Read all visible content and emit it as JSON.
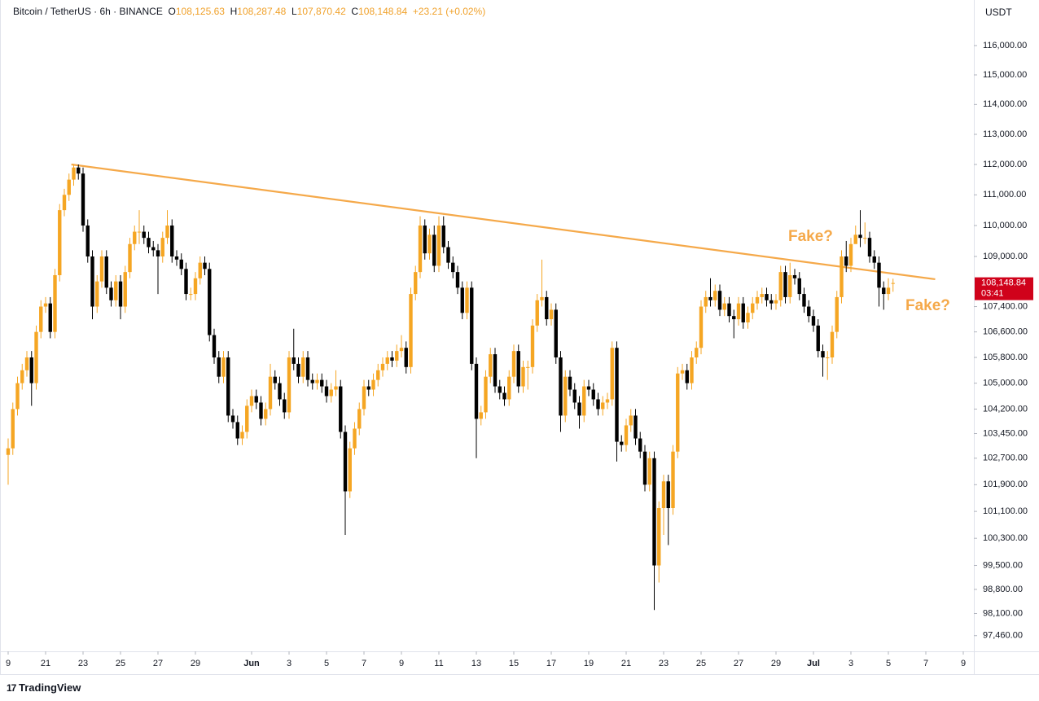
{
  "header": {
    "symbol": "Bitcoin / TetherUS · 6h · BINANCE",
    "open_label": "O",
    "open": "108,125.63",
    "high_label": "H",
    "high": "108,287.48",
    "low_label": "L",
    "low": "107,870.42",
    "close_label": "C",
    "close": "108,148.84",
    "change": "+23.21 (+0.02%)",
    "currency": "USDT"
  },
  "brand": "TradingView",
  "chart_data": {
    "type": "candlestick",
    "log_scale": true,
    "up_color": "#f5a623",
    "down_color": "#000000",
    "ylim": [
      97010,
      117570
    ],
    "yticks": [
      {
        "value": 116000,
        "label": "116,000.00"
      },
      {
        "value": 115000,
        "label": "115,000.00"
      },
      {
        "value": 114000,
        "label": "114,000.00"
      },
      {
        "value": 113000,
        "label": "113,000.00"
      },
      {
        "value": 112000,
        "label": "112,000.00"
      },
      {
        "value": 111000,
        "label": "111,000.00"
      },
      {
        "value": 110000,
        "label": "110,000.00"
      },
      {
        "value": 109000,
        "label": "109,000.00"
      },
      {
        "value": 107400,
        "label": "107,400.00"
      },
      {
        "value": 106600,
        "label": "106,600.00"
      },
      {
        "value": 105800,
        "label": "105,800.00"
      },
      {
        "value": 105000,
        "label": "105,000.00"
      },
      {
        "value": 104200,
        "label": "104,200.00"
      },
      {
        "value": 103450,
        "label": "103,450.00"
      },
      {
        "value": 102700,
        "label": "102,700.00"
      },
      {
        "value": 101900,
        "label": "101,900.00"
      },
      {
        "value": 101100,
        "label": "101,100.00"
      },
      {
        "value": 100300,
        "label": "100,300.00"
      },
      {
        "value": 99500,
        "label": "99,500.00"
      },
      {
        "value": 98800,
        "label": "98,800.00"
      },
      {
        "value": 98100,
        "label": "98,100.00"
      },
      {
        "value": 97460,
        "label": "97,460.00"
      }
    ],
    "categories": [
      "9",
      null,
      null,
      null,
      null,
      null,
      null,
      null,
      "21",
      null,
      null,
      null,
      null,
      null,
      null,
      null,
      "23",
      null,
      null,
      null,
      null,
      null,
      null,
      null,
      "25",
      null,
      null,
      null,
      null,
      null,
      null,
      null,
      "27",
      null,
      null,
      null,
      null,
      null,
      null,
      null,
      "29",
      null,
      null,
      null,
      null,
      null,
      null,
      null,
      null,
      null,
      null,
      null,
      "Jun",
      null,
      null,
      null,
      null,
      null,
      null,
      null,
      "3",
      null,
      null,
      null,
      null,
      null,
      null,
      null,
      "5",
      null,
      null,
      null,
      null,
      null,
      null,
      null,
      "7",
      null,
      null,
      null,
      null,
      null,
      null,
      null,
      "9",
      null,
      null,
      null,
      null,
      null,
      null,
      null,
      "11",
      null,
      null,
      null,
      null,
      null,
      null,
      null,
      "13",
      null,
      null,
      null,
      null,
      null,
      null,
      null,
      "15",
      null,
      null,
      null,
      null,
      null,
      null,
      null,
      "17",
      null,
      null,
      null,
      null,
      null,
      null,
      null,
      "19",
      null,
      null,
      null,
      null,
      null,
      null,
      null,
      "21",
      null,
      null,
      null,
      null,
      null,
      null,
      null,
      "23",
      null,
      null,
      null,
      null,
      null,
      null,
      null,
      "25",
      null,
      null,
      null,
      null,
      null,
      null,
      null,
      "27",
      null,
      null,
      null,
      null,
      null,
      null,
      null,
      "29",
      null,
      null,
      null,
      null,
      null,
      null,
      null,
      "Jul",
      null,
      null,
      null,
      null,
      null,
      null,
      null,
      "3",
      null,
      null,
      null,
      null,
      null,
      null,
      null,
      "5",
      null,
      null,
      null,
      null,
      null,
      null,
      null,
      "7",
      null,
      null,
      null,
      null,
      null,
      null,
      null,
      "9"
    ],
    "open": [
      102800,
      103000,
      104200,
      105000,
      105400,
      105800,
      105000,
      106600,
      107400,
      107500,
      106600,
      108400,
      110500,
      111000,
      111500,
      111900,
      111700,
      110000,
      109000,
      107400,
      108200,
      109000,
      108000,
      107600,
      108200,
      107400,
      108500,
      109400,
      109800,
      109800,
      109600,
      109300,
      109200,
      109000,
      109600,
      110000,
      109000,
      108900,
      108600,
      107800,
      107800,
      108300,
      108800,
      108600,
      106500,
      105800,
      105200,
      105800,
      104000,
      103800,
      103300,
      103500,
      104300,
      104600,
      104400,
      103900,
      104200,
      105200,
      105000,
      104500,
      104100,
      105800,
      105600,
      105200,
      105800,
      105100,
      105000,
      105100,
      104900,
      104600,
      104800,
      104900,
      103500,
      101700,
      103000,
      103600,
      104200,
      104900,
      104800,
      105100,
      105400,
      105600,
      105800,
      105700,
      106000,
      106100,
      105500,
      107800,
      108500,
      110000,
      109100,
      109700,
      108700,
      110000,
      109300,
      108800,
      108500,
      108000,
      107200,
      108000,
      105600,
      103900,
      104100,
      105200,
      105900,
      104900,
      104700,
      104500,
      105200,
      106000,
      104900,
      105500,
      105500,
      106800,
      107600,
      107700,
      107000,
      107300,
      105800,
      104000,
      105200,
      104800,
      104400,
      104000,
      104900,
      104800,
      104500,
      104200,
      104400,
      104500,
      106100,
      103200,
      103100,
      103700,
      104000,
      103300,
      102900,
      101900,
      102700,
      99500,
      101200,
      102000,
      101200,
      102900,
      105300,
      105400,
      105000,
      105800,
      106100,
      107400,
      107700,
      107600,
      107900,
      107300,
      107500,
      107100,
      107000,
      107500,
      106900,
      107200,
      107500,
      107700,
      107800,
      107600,
      107500,
      107600,
      108500,
      107700,
      108400,
      108300,
      107800,
      107400,
      107100,
      106800,
      106000,
      105800,
      105800,
      106600,
      107700,
      109000,
      108700,
      109400,
      109700,
      109600,
      109600,
      109000,
      108800,
      108000,
      107800,
      108125.63,
      null,
      null,
      null,
      null,
      null,
      null,
      null,
      null,
      null,
      null,
      null,
      null,
      null,
      null,
      null
    ],
    "high": [
      103300,
      104400,
      105200,
      105600,
      106000,
      106000,
      106800,
      107600,
      107700,
      107700,
      108600,
      110700,
      111200,
      111700,
      112000,
      112000,
      111900,
      110200,
      109200,
      108400,
      109200,
      109200,
      108200,
      108400,
      108400,
      108700,
      109600,
      110000,
      110500,
      110000,
      109800,
      109500,
      109400,
      109800,
      110500,
      110200,
      109200,
      109100,
      108800,
      108000,
      108500,
      109000,
      109000,
      108800,
      106700,
      106000,
      106000,
      106000,
      104200,
      104000,
      103700,
      104500,
      104800,
      104800,
      104600,
      104400,
      105600,
      105400,
      105200,
      104700,
      106000,
      106700,
      105800,
      106000,
      106000,
      105300,
      105300,
      105300,
      105100,
      105000,
      105400,
      105100,
      103700,
      103200,
      103800,
      104400,
      105100,
      105100,
      105300,
      105600,
      105800,
      106000,
      106000,
      106200,
      106500,
      106300,
      108000,
      108700,
      110300,
      110200,
      109900,
      110000,
      110300,
      110300,
      109500,
      109000,
      108700,
      108200,
      108200,
      108200,
      105800,
      104300,
      105400,
      106100,
      106100,
      105100,
      104900,
      105400,
      106200,
      106200,
      105700,
      105700,
      107000,
      107800,
      108900,
      107900,
      107500,
      107500,
      106000,
      105400,
      105400,
      105000,
      104600,
      105100,
      105100,
      105000,
      104700,
      104600,
      104700,
      106300,
      106300,
      103400,
      103900,
      104200,
      104200,
      103500,
      103100,
      102900,
      102900,
      101400,
      102200,
      102200,
      103100,
      105500,
      105600,
      105600,
      106000,
      106300,
      107600,
      107900,
      108300,
      108100,
      108100,
      107700,
      107700,
      107300,
      107700,
      107700,
      107400,
      107700,
      107900,
      108000,
      108000,
      107800,
      107800,
      108700,
      108700,
      108800,
      108600,
      108500,
      108000,
      107600,
      107300,
      107000,
      106200,
      106000,
      106800,
      107900,
      109200,
      109500,
      109600,
      110000,
      110500,
      110100,
      109800,
      109200,
      109000,
      108200,
      108300,
      108287.48,
      null,
      null,
      null,
      null,
      null,
      null,
      null,
      null,
      null,
      null,
      null,
      null,
      null,
      null,
      null
    ],
    "low": [
      101900,
      102800,
      104000,
      104800,
      105200,
      104300,
      104800,
      106400,
      107200,
      106400,
      106400,
      108200,
      110300,
      110800,
      111300,
      111500,
      109800,
      108800,
      107000,
      107200,
      108000,
      107800,
      107400,
      107400,
      107000,
      107200,
      108300,
      109200,
      109400,
      109400,
      109100,
      109000,
      107800,
      108800,
      109400,
      108800,
      108700,
      108400,
      107600,
      107600,
      107600,
      108100,
      108400,
      106300,
      105600,
      105000,
      105000,
      103800,
      103600,
      103100,
      103100,
      103300,
      104100,
      104200,
      103700,
      103700,
      104000,
      104800,
      104300,
      103900,
      103900,
      105400,
      105000,
      105000,
      104900,
      104800,
      104800,
      104700,
      104400,
      104400,
      104600,
      103300,
      100400,
      101500,
      102800,
      103400,
      104000,
      104600,
      104600,
      104900,
      105200,
      105400,
      105500,
      105500,
      105800,
      105300,
      105300,
      107600,
      108300,
      108900,
      108900,
      108500,
      108500,
      109100,
      108600,
      108300,
      107800,
      107000,
      107000,
      105400,
      102700,
      103700,
      103900,
      105000,
      104700,
      104500,
      104300,
      104300,
      105000,
      104700,
      104700,
      104800,
      105300,
      106600,
      107400,
      106800,
      106800,
      105600,
      103500,
      103800,
      104600,
      104200,
      103600,
      103800,
      104600,
      104300,
      104000,
      104000,
      104200,
      104300,
      102600,
      102900,
      102900,
      103500,
      103100,
      102700,
      101700,
      101700,
      98200,
      99000,
      100400,
      100100,
      101000,
      102700,
      105100,
      104800,
      104800,
      105600,
      105900,
      107200,
      107400,
      107400,
      107100,
      107100,
      106900,
      106400,
      106800,
      106700,
      106700,
      107000,
      107300,
      107500,
      107400,
      107300,
      107300,
      107400,
      107500,
      107500,
      108100,
      107600,
      107200,
      106900,
      106600,
      105800,
      105200,
      105100,
      105600,
      106400,
      107500,
      108500,
      108500,
      109500,
      109300,
      109400,
      108800,
      108600,
      107400,
      107300,
      107600,
      107870.42,
      null,
      null,
      null,
      null,
      null,
      null,
      null,
      null,
      null,
      null,
      null,
      null,
      null,
      null,
      null
    ],
    "close": [
      103000,
      104200,
      105000,
      105400,
      105800,
      105000,
      106600,
      107400,
      107500,
      106600,
      108400,
      110500,
      111000,
      111500,
      111900,
      111700,
      110000,
      109000,
      107400,
      108200,
      109000,
      108000,
      107600,
      108200,
      107400,
      108500,
      109400,
      109800,
      109800,
      109600,
      109300,
      109200,
      109000,
      109600,
      110000,
      109000,
      108900,
      108600,
      107800,
      107800,
      108300,
      108800,
      108600,
      106500,
      105800,
      105200,
      105800,
      104000,
      103800,
      103300,
      103500,
      104300,
      104600,
      104400,
      103900,
      104200,
      105200,
      105000,
      104500,
      104100,
      105800,
      105600,
      105200,
      105800,
      105100,
      105000,
      105100,
      104900,
      104600,
      104800,
      104900,
      103500,
      101700,
      103000,
      103600,
      104200,
      104900,
      104800,
      105100,
      105400,
      105600,
      105800,
      105700,
      106000,
      106100,
      105500,
      107800,
      108500,
      110000,
      109100,
      109700,
      108700,
      110000,
      109300,
      108800,
      108500,
      108000,
      107200,
      108000,
      105600,
      103900,
      104100,
      105200,
      105900,
      104900,
      104700,
      104500,
      105200,
      106000,
      104900,
      105500,
      105500,
      106800,
      107600,
      107700,
      107000,
      107300,
      105800,
      104000,
      105200,
      104800,
      104400,
      104000,
      104900,
      104800,
      104500,
      104200,
      104400,
      104500,
      106100,
      103200,
      103100,
      103700,
      104000,
      103300,
      102900,
      101900,
      102700,
      99500,
      101200,
      102000,
      101200,
      102900,
      105300,
      105400,
      105000,
      105800,
      106100,
      107400,
      107700,
      107600,
      107900,
      107300,
      107500,
      107100,
      107000,
      107500,
      106900,
      107200,
      107500,
      107700,
      107800,
      107600,
      107500,
      107600,
      108500,
      107700,
      108400,
      108300,
      107800,
      107400,
      107100,
      106800,
      106000,
      105800,
      105800,
      106600,
      107700,
      109000,
      108700,
      109400,
      109700,
      109600,
      109600,
      109000,
      108800,
      108000,
      107800,
      108000,
      108148.84,
      null,
      null,
      null,
      null,
      null,
      null,
      null,
      null,
      null,
      null,
      null,
      null,
      null,
      null,
      null
    ],
    "last_price": {
      "value": 108148.84,
      "label": "108,148.84",
      "countdown": "03:41",
      "color": "#d0021b"
    },
    "trendline": {
      "x": [
        13.5,
        198
      ],
      "values": [
        112000,
        108270
      ],
      "color": "#f5a94a"
    },
    "annotations": [
      {
        "text": "Fake?",
        "color": "#f5a94a"
      },
      {
        "text": "Fake?",
        "color": "#f5a94a"
      }
    ]
  }
}
